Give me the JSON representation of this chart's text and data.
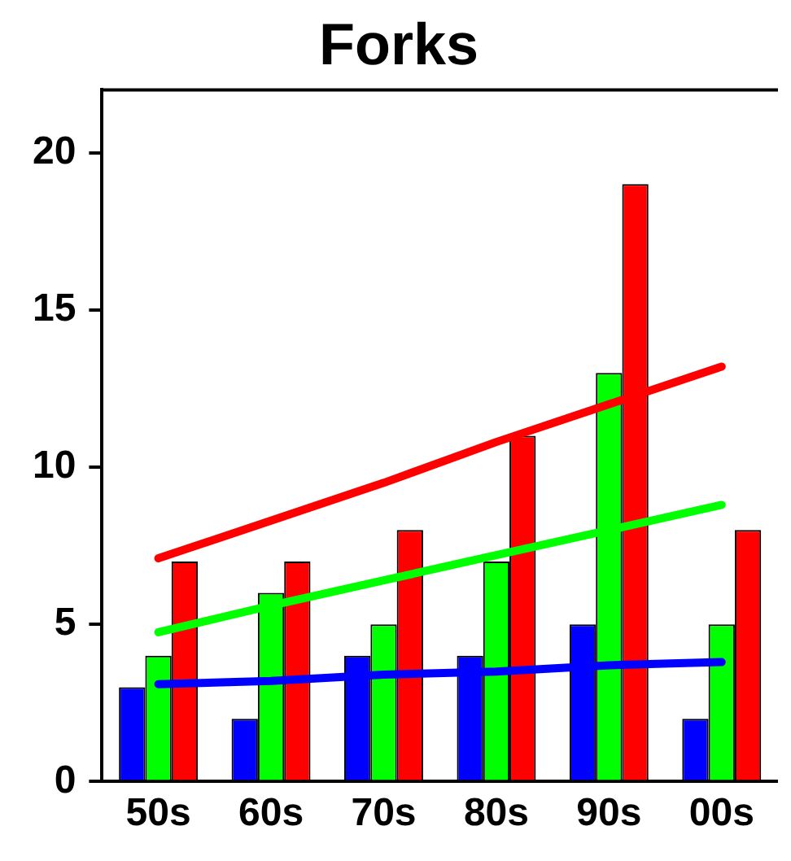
{
  "chart_data": {
    "type": "bar",
    "title": "Forks",
    "categories": [
      "50s",
      "60s",
      "70s",
      "80s",
      "90s",
      "00s"
    ],
    "series": [
      {
        "color": "#0000ff",
        "values": [
          3,
          2,
          4,
          4,
          5,
          2
        ]
      },
      {
        "color": "#00ff00",
        "values": [
          4,
          6,
          5,
          7,
          13,
          5
        ]
      },
      {
        "color": "#ff0000",
        "values": [
          7,
          7,
          8,
          11,
          19,
          8
        ]
      },
      {
        "type": "line",
        "color": "#0000ff",
        "values": [
          3.1,
          3.2,
          3.4,
          3.5,
          3.7,
          3.8
        ]
      },
      {
        "type": "line",
        "color": "#00ff00",
        "values": [
          4.75,
          5.6,
          6.4,
          7.2,
          8.0,
          8.8
        ]
      },
      {
        "type": "line",
        "color": "#ff0000",
        "values": [
          7.1,
          8.3,
          9.5,
          10.8,
          12.0,
          13.2
        ]
      }
    ],
    "ylim": [
      0,
      22
    ],
    "yticks": [
      0,
      5,
      10,
      15,
      20
    ],
    "grid": false,
    "legend": false,
    "marker": "none",
    "line_style": "solid"
  }
}
